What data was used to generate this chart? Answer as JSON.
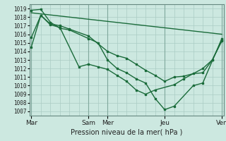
{
  "title": "",
  "xlabel": "Pression niveau de la mer( hPa )",
  "ylabel": "",
  "bg_color": "#cce8e0",
  "grid_major_color": "#aaccC4",
  "grid_minor_color": "#bbddd6",
  "line_color": "#1a6b3a",
  "ylim": [
    1006.5,
    1019.5
  ],
  "yticks": [
    1007,
    1008,
    1009,
    1010,
    1011,
    1012,
    1013,
    1014,
    1015,
    1016,
    1017,
    1018,
    1019
  ],
  "xtick_labels": [
    "Mar",
    "",
    "",
    "Sam",
    "Mer",
    "",
    "",
    "Jeu",
    "",
    "",
    "Ven"
  ],
  "xtick_positions": [
    0,
    1,
    2,
    3,
    4,
    5,
    6,
    7,
    8,
    9,
    10
  ],
  "day_positions": [
    0,
    3,
    4,
    7,
    10
  ],
  "day_labels": [
    "Mar",
    "Sam",
    "Mer",
    "Jeu",
    "Ven"
  ],
  "line1_x": [
    0,
    0.5,
    1.0,
    1.5,
    2.0,
    3.0,
    4.0,
    4.5,
    5.0,
    5.5,
    6.0,
    6.5,
    7.0,
    7.5,
    8.0,
    8.5,
    9.0,
    9.5,
    10.0
  ],
  "line1_y": [
    1014.5,
    1018.2,
    1017.2,
    1017.0,
    1016.6,
    1015.8,
    1014.0,
    1013.5,
    1013.2,
    1012.5,
    1011.8,
    1011.2,
    1010.5,
    1011.0,
    1011.1,
    1011.4,
    1011.5,
    1013.0,
    1015.2
  ],
  "line2_x": [
    0,
    0.5,
    1.0,
    1.5,
    2.5,
    3.0,
    3.5,
    4.0,
    4.5,
    5.0,
    5.5,
    6.0,
    6.5,
    7.5,
    8.0,
    9.0,
    9.5,
    10.0
  ],
  "line2_y": [
    1015.6,
    1018.2,
    1017.1,
    1016.8,
    1012.2,
    1012.5,
    1012.2,
    1011.9,
    1011.2,
    1010.5,
    1009.5,
    1009.0,
    1009.5,
    1010.1,
    1010.8,
    1012.0,
    1013.0,
    1015.3
  ],
  "line3_x": [
    0,
    0.5,
    1.0,
    1.5,
    2.0,
    3.0,
    3.5,
    4.0,
    4.5,
    5.0,
    5.5,
    6.0,
    6.5,
    7.0,
    7.5,
    8.5,
    9.0,
    10.0
  ],
  "line3_y": [
    1018.8,
    1018.9,
    1017.4,
    1016.7,
    1016.5,
    1015.5,
    1015.0,
    1013.0,
    1012.0,
    1011.5,
    1010.8,
    1010.3,
    1008.5,
    1007.2,
    1007.6,
    1010.0,
    1010.3,
    1015.5
  ],
  "line4_x": [
    0,
    10
  ],
  "line4_y": [
    1018.5,
    1016.0
  ]
}
